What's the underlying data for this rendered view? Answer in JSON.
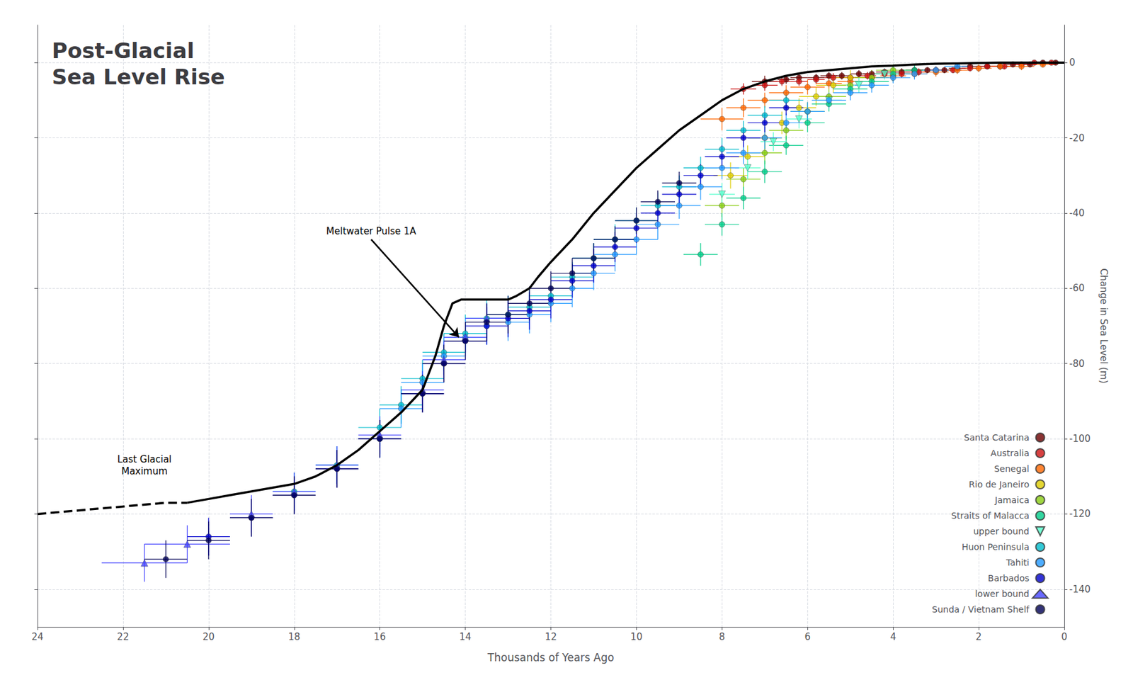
{
  "chart_data": {
    "type": "scatter",
    "title": "Post-Glacial\nSea Level Rise",
    "xlabel": "Thousands of Years Ago",
    "ylabel": "Change in Sea Level (m)",
    "xlim": [
      24,
      0
    ],
    "ylim": [
      -150,
      10
    ],
    "xticks": [
      24,
      22,
      20,
      18,
      16,
      14,
      12,
      10,
      8,
      6,
      4,
      2,
      0
    ],
    "yticks": [
      0,
      -20,
      -40,
      -60,
      -80,
      -100,
      -120,
      -140
    ],
    "grid": true,
    "legend": "lower right",
    "series": [
      {
        "type": "line",
        "color": "#000000",
        "line_style": "solid",
        "x": [
          20.5,
          20,
          19.5,
          19,
          18.5,
          18,
          17.5,
          17,
          16.5,
          16,
          15.5,
          15,
          14.7,
          14.5,
          14.3,
          14.1,
          14.0,
          13.9,
          13.7,
          13.5,
          13.3,
          13.0,
          12.8,
          12.5,
          12.3,
          12.0,
          11.5,
          11.0,
          10.5,
          10.0,
          9.5,
          9.0,
          8.5,
          8.0,
          7.5,
          7.0,
          6.5,
          6.0,
          5.5,
          5.0,
          4.5,
          4.0,
          3.5,
          3.0,
          2.5,
          2.0,
          1.5,
          1.0,
          0.5,
          0.0
        ],
        "values": [
          -117,
          -116,
          -115,
          -114,
          -113,
          -112,
          -110,
          -107,
          -103,
          -98,
          -93,
          -87,
          -78,
          -70,
          -64,
          -63,
          -63,
          -63,
          -63,
          -63,
          -63,
          -63,
          -62,
          -60,
          -57,
          -53,
          -47,
          -40,
          -34,
          -28,
          -23,
          -18,
          -14,
          -10,
          -7,
          -5,
          -3.5,
          -2.5,
          -2,
          -1.5,
          -1,
          -0.8,
          -0.5,
          -0.3,
          -0.2,
          -0.1,
          0,
          0,
          0,
          0
        ]
      },
      {
        "type": "line",
        "color": "#000000",
        "line_style": "dashed",
        "x": [
          24,
          23,
          22,
          21,
          20.5
        ],
        "values": [
          -120,
          -119,
          -118,
          -117,
          -117
        ]
      },
      {
        "type": "scatter",
        "name": "Santa Catarina",
        "color": "#6B0000",
        "marker": "circle",
        "x": [
          0.2,
          0.5,
          0.8,
          1.2,
          1.5,
          1.8,
          2.2,
          2.5,
          2.8,
          3.2,
          3.5,
          3.8,
          4.2,
          4.5,
          4.8,
          5.2,
          5.5,
          5.8,
          6.2,
          6.5,
          7.0
        ],
        "values": [
          0,
          0,
          -0.5,
          -0.5,
          -1,
          -1,
          -1,
          -1.5,
          -2,
          -2,
          -2,
          -2.5,
          -2.5,
          -3,
          -3,
          -3.5,
          -3.5,
          -4,
          -4,
          -4.5,
          -5
        ],
        "xerr": [
          0.15,
          0.15,
          0.15,
          0.2,
          0.2,
          0.2,
          0.2,
          0.2,
          0.2,
          0.2,
          0.2,
          0.2,
          0.2,
          0.2,
          0.2,
          0.2,
          0.2,
          0.2,
          0.2,
          0.2,
          0.3
        ],
        "yerr": [
          0.5,
          0.5,
          0.5,
          0.5,
          0.5,
          0.5,
          0.8,
          0.8,
          0.8,
          0.8,
          1,
          1,
          1,
          1,
          1,
          1,
          1,
          1,
          1.2,
          1.2,
          1.5
        ]
      },
      {
        "type": "scatter",
        "name": "Australia",
        "color": "#cc1111",
        "marker": "circle",
        "x": [
          0.3,
          0.7,
          1.0,
          1.4,
          1.8,
          2.2,
          2.6,
          3.0,
          3.4,
          3.8,
          4.2,
          4.6,
          5.0,
          5.4,
          5.8,
          6.2,
          6.6,
          7.0,
          7.5
        ],
        "values": [
          0,
          0,
          -0.5,
          -1,
          -1,
          -1.5,
          -2,
          -2,
          -2.5,
          -3,
          -3,
          -3.5,
          -4,
          -4,
          -4.5,
          -5,
          -5,
          -6,
          -7
        ],
        "xerr": [
          0.2,
          0.2,
          0.2,
          0.2,
          0.2,
          0.2,
          0.2,
          0.2,
          0.2,
          0.2,
          0.2,
          0.2,
          0.2,
          0.2,
          0.2,
          0.2,
          0.2,
          0.3,
          0.3
        ],
        "yerr": [
          0.5,
          0.5,
          0.5,
          0.8,
          0.8,
          0.8,
          0.8,
          1,
          1,
          1,
          1,
          1,
          1,
          1.2,
          1.2,
          1.2,
          1.2,
          1.5,
          1.5
        ]
      },
      {
        "type": "scatter",
        "name": "Senegal",
        "color": "#ff6600",
        "marker": "circle",
        "x": [
          0.5,
          1.0,
          1.5,
          2.0,
          2.5,
          3.0,
          3.5,
          4.0,
          4.5,
          5.0,
          5.5,
          6.0,
          6.5,
          7.0,
          7.5,
          8.0
        ],
        "values": [
          -0.5,
          -1,
          -1,
          -1.5,
          -2,
          -2.5,
          -3,
          -3.5,
          -4,
          -5,
          -5.5,
          -6.5,
          -8,
          -10,
          -12,
          -15
        ],
        "xerr": [
          0.3,
          0.3,
          0.3,
          0.3,
          0.3,
          0.3,
          0.3,
          0.3,
          0.3,
          0.3,
          0.3,
          0.4,
          0.4,
          0.4,
          0.4,
          0.5
        ],
        "yerr": [
          0.8,
          1,
          1,
          1,
          1,
          1.2,
          1.2,
          1.5,
          1.5,
          1.5,
          1.5,
          2,
          2,
          2,
          2.5,
          3
        ]
      },
      {
        "type": "scatter",
        "name": "Rio de Janeiro",
        "color": "#ddcc00",
        "marker": "circle",
        "x": [
          5.0,
          5.4,
          5.8,
          6.2,
          6.6,
          7.0,
          7.4,
          7.8
        ],
        "values": [
          -4,
          -6,
          -9,
          -12,
          -16,
          -20,
          -25,
          -30
        ],
        "xerr": [
          0.4,
          0.4,
          0.4,
          0.4,
          0.4,
          0.4,
          0.4,
          0.4
        ],
        "yerr": [
          2,
          2,
          2.5,
          2.5,
          3,
          3,
          3,
          3.5
        ]
      },
      {
        "type": "scatter",
        "name": "Jamaica",
        "color": "#88cc11",
        "marker": "circle",
        "x": [
          4.0,
          4.5,
          5.0,
          5.5,
          6.0,
          6.5,
          7.0,
          7.5,
          8.0
        ],
        "values": [
          -2,
          -4,
          -6,
          -9,
          -13,
          -18,
          -24,
          -31,
          -38
        ],
        "xerr": [
          0.4,
          0.4,
          0.4,
          0.4,
          0.4,
          0.4,
          0.4,
          0.4,
          0.4
        ],
        "yerr": [
          1.5,
          2,
          2,
          2,
          2.5,
          2.5,
          3,
          3,
          3
        ]
      },
      {
        "type": "scatter",
        "name": "Straits of Malacca",
        "color": "#00cc88",
        "marker": "circle",
        "x": [
          3.5,
          4.0,
          4.5,
          5.0,
          5.5,
          6.0,
          6.5,
          7.0,
          7.5,
          8.0,
          8.5
        ],
        "values": [
          -2,
          -3,
          -5,
          -7,
          -11,
          -16,
          -22,
          -29,
          -36,
          -43,
          -51
        ],
        "xerr": [
          0.3,
          0.4,
          0.4,
          0.4,
          0.4,
          0.4,
          0.4,
          0.4,
          0.4,
          0.4,
          0.4
        ],
        "yerr": [
          1.5,
          2,
          2,
          2,
          2,
          2.5,
          2.5,
          3,
          3,
          3,
          3
        ]
      },
      {
        "type": "scatter",
        "name": "upper bound",
        "color": "#55ffcc",
        "marker": "triangle_down",
        "x": [
          4.2,
          4.8,
          5.5,
          6.2,
          6.8,
          7.4,
          8.0
        ],
        "values": [
          -3,
          -6,
          -10,
          -15,
          -21,
          -28,
          -35
        ],
        "xerr": [
          0.3,
          0.3,
          0.3,
          0.3,
          0.3,
          0.3,
          0.3
        ],
        "yerr": [
          1.5,
          2,
          2,
          2.5,
          2.5,
          3,
          3
        ]
      },
      {
        "type": "scatter",
        "name": "Huon Peninsula",
        "color": "#00bbcc",
        "marker": "circle",
        "x": [
          6.5,
          7.0,
          7.5,
          8.0,
          8.5,
          9.0,
          9.5,
          10.0,
          10.5,
          11.0,
          11.5,
          12.0,
          12.5,
          13.0,
          13.5,
          14.0,
          14.5,
          15.0,
          15.5,
          16.0,
          17.0,
          18.0
        ],
        "values": [
          -10,
          -14,
          -18,
          -23,
          -28,
          -33,
          -38,
          -42,
          -47,
          -52,
          -57,
          -62,
          -65,
          -67,
          -68,
          -72,
          -77,
          -84,
          -91,
          -97,
          -107,
          -114
        ],
        "xerr": [
          0.4,
          0.4,
          0.4,
          0.4,
          0.4,
          0.4,
          0.4,
          0.5,
          0.5,
          0.5,
          0.5,
          0.5,
          0.5,
          0.5,
          0.5,
          0.5,
          0.5,
          0.5,
          0.5,
          0.5,
          0.5,
          0.5
        ],
        "yerr": [
          2,
          2.5,
          2.5,
          3,
          3,
          3,
          3.5,
          3.5,
          4,
          4,
          4,
          4.5,
          4.5,
          5,
          5,
          5,
          5,
          5,
          5,
          5,
          5,
          5
        ]
      },
      {
        "type": "scatter",
        "name": "Tahiti",
        "color": "#2299ff",
        "marker": "circle",
        "x": [
          2.5,
          3.0,
          3.5,
          4.0,
          4.5,
          5.0,
          5.5,
          6.0,
          6.5,
          7.0,
          7.5,
          8.0,
          8.5,
          9.0,
          9.5,
          10.0,
          10.5,
          11.0,
          11.5,
          12.0,
          12.5,
          13.0,
          13.5,
          14.0,
          14.5,
          15.0,
          15.5,
          16.0
        ],
        "values": [
          -1,
          -2,
          -3,
          -4,
          -6,
          -8,
          -10,
          -13,
          -16,
          -20,
          -24,
          -28,
          -33,
          -38,
          -43,
          -47,
          -51,
          -56,
          -60,
          -64,
          -67,
          -69,
          -70,
          -73,
          -78,
          -85,
          -92,
          -100
        ],
        "xerr": [
          0.3,
          0.3,
          0.3,
          0.4,
          0.4,
          0.4,
          0.4,
          0.4,
          0.4,
          0.4,
          0.4,
          0.4,
          0.5,
          0.5,
          0.5,
          0.5,
          0.5,
          0.5,
          0.5,
          0.5,
          0.5,
          0.5,
          0.5,
          0.5,
          0.5,
          0.5,
          0.5,
          0.5
        ],
        "yerr": [
          1,
          1,
          1.5,
          1.5,
          2,
          2,
          2,
          2.5,
          2.5,
          3,
          3,
          3,
          3.5,
          3.5,
          4,
          4,
          4.5,
          4.5,
          5,
          5,
          5,
          5,
          5,
          5,
          5,
          5,
          5,
          5
        ]
      },
      {
        "type": "scatter",
        "name": "Barbados",
        "color": "#0000cc",
        "marker": "circle",
        "x": [
          6.5,
          7.0,
          7.5,
          8.0,
          8.5,
          9.0,
          9.5,
          10.0,
          10.5,
          11.0,
          11.5,
          12.0,
          12.5,
          13.0,
          13.5,
          14.0,
          14.5,
          15.0,
          16.0,
          17.0,
          18.0,
          19.0,
          20.0
        ],
        "values": [
          -12,
          -16,
          -20,
          -25,
          -30,
          -35,
          -40,
          -44,
          -49,
          -54,
          -58,
          -63,
          -66,
          -68,
          -70,
          -74,
          -80,
          -88,
          -100,
          -108,
          -115,
          -121,
          -126
        ],
        "xerr": [
          0.4,
          0.4,
          0.4,
          0.4,
          0.4,
          0.4,
          0.4,
          0.5,
          0.5,
          0.5,
          0.5,
          0.5,
          0.5,
          0.5,
          0.5,
          0.5,
          0.5,
          0.5,
          0.5,
          0.5,
          0.5,
          0.5,
          0.5
        ],
        "yerr": [
          2,
          2.5,
          2.5,
          3,
          3,
          3.5,
          3.5,
          4,
          4,
          4.5,
          4.5,
          5,
          5,
          5,
          5,
          5,
          5,
          5,
          5,
          5,
          5,
          5,
          5
        ]
      },
      {
        "type": "scatter",
        "name": "lower bound",
        "color": "#4444ff",
        "marker": "triangle_up",
        "x": [
          13.5,
          14.0,
          14.5,
          15.0,
          16.0,
          17.0,
          18.0,
          19.0,
          20.5,
          21.5
        ],
        "values": [
          -68,
          -73,
          -79,
          -87,
          -99,
          -107,
          -114,
          -120,
          -128,
          -133
        ],
        "xerr": [
          0.5,
          0.5,
          0.5,
          0.5,
          0.5,
          0.5,
          0.5,
          0.5,
          1.0,
          1.0
        ],
        "yerr": [
          4,
          4,
          5,
          5,
          5,
          5,
          5,
          5,
          5,
          5
        ]
      },
      {
        "type": "scatter",
        "name": "Sunda / Vietnam Shelf",
        "color": "#000055",
        "marker": "circle",
        "x": [
          9.0,
          9.5,
          10.0,
          10.5,
          11.0,
          11.5,
          12.0,
          12.5,
          13.0,
          13.5,
          14.0,
          14.5,
          15.0,
          16.0,
          17.0,
          18.0,
          19.0,
          20.0,
          21.0
        ],
        "values": [
          -32,
          -37,
          -42,
          -47,
          -52,
          -56,
          -60,
          -64,
          -67,
          -69,
          -74,
          -80,
          -88,
          -100,
          -108,
          -115,
          -121,
          -127,
          -132
        ],
        "xerr": [
          0.4,
          0.4,
          0.5,
          0.5,
          0.5,
          0.5,
          0.5,
          0.5,
          0.5,
          0.5,
          0.5,
          0.5,
          0.5,
          0.5,
          0.5,
          0.5,
          0.5,
          0.5,
          0.5
        ],
        "yerr": [
          3,
          3,
          3.5,
          3.5,
          4,
          4,
          4.5,
          4.5,
          5,
          5,
          5,
          5,
          5,
          5,
          5,
          5,
          5,
          5,
          5
        ]
      }
    ],
    "annotations": [
      {
        "text": "Last Glacial\nMaximum",
        "x": 21.5,
        "y": -107
      },
      {
        "text": "Meltwater Pulse 1A",
        "x": 16.2,
        "y": -47,
        "arrow_to": [
          14.15,
          -73
        ]
      }
    ]
  }
}
